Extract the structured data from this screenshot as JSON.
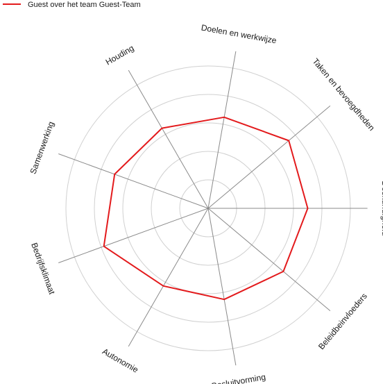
{
  "legend": {
    "label": "Guest over het team Guest-Team"
  },
  "colors": {
    "series": "#e31a1c",
    "grid": "#d0d0d0",
    "spoke": "#8a8a8a"
  },
  "chart_data": {
    "type": "radar",
    "categories": [
      "Doelen en werkwijze",
      "Taken en bevoegdheden",
      "Deskundigheid",
      "Beleidbeinvloeders",
      "Besluitvorming",
      "Autonomie",
      "Bedrijfsklimaat",
      "Samenwerking",
      "Houding"
    ],
    "series": [
      {
        "name": "Guest over het team Guest-Team",
        "values": [
          0.65,
          0.74,
          0.7,
          0.69,
          0.65,
          0.63,
          0.78,
          0.7,
          0.65
        ]
      }
    ],
    "rlim": [
      0,
      1
    ],
    "grid_rings": 5,
    "legend_position": "top-left",
    "title": "",
    "xlabel": "",
    "ylabel": ""
  }
}
